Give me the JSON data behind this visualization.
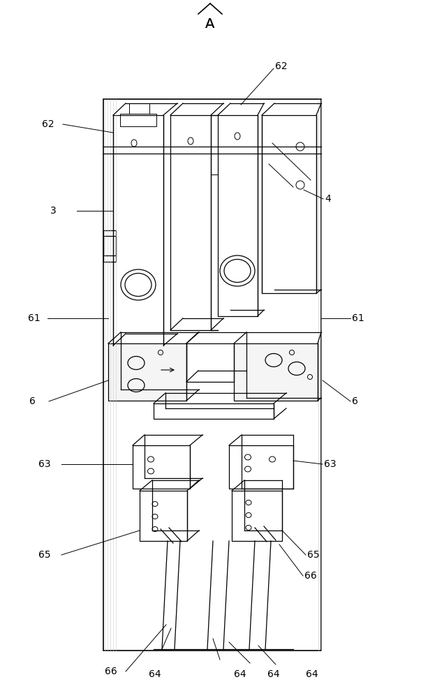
{
  "bg_color": "#ffffff",
  "line_color": "#000000",
  "figsize": [
    6.03,
    10.0
  ],
  "dpi": 100,
  "label_fs": 10,
  "title_fs": 14,
  "lw_main": 0.9,
  "lw_thin": 0.7
}
